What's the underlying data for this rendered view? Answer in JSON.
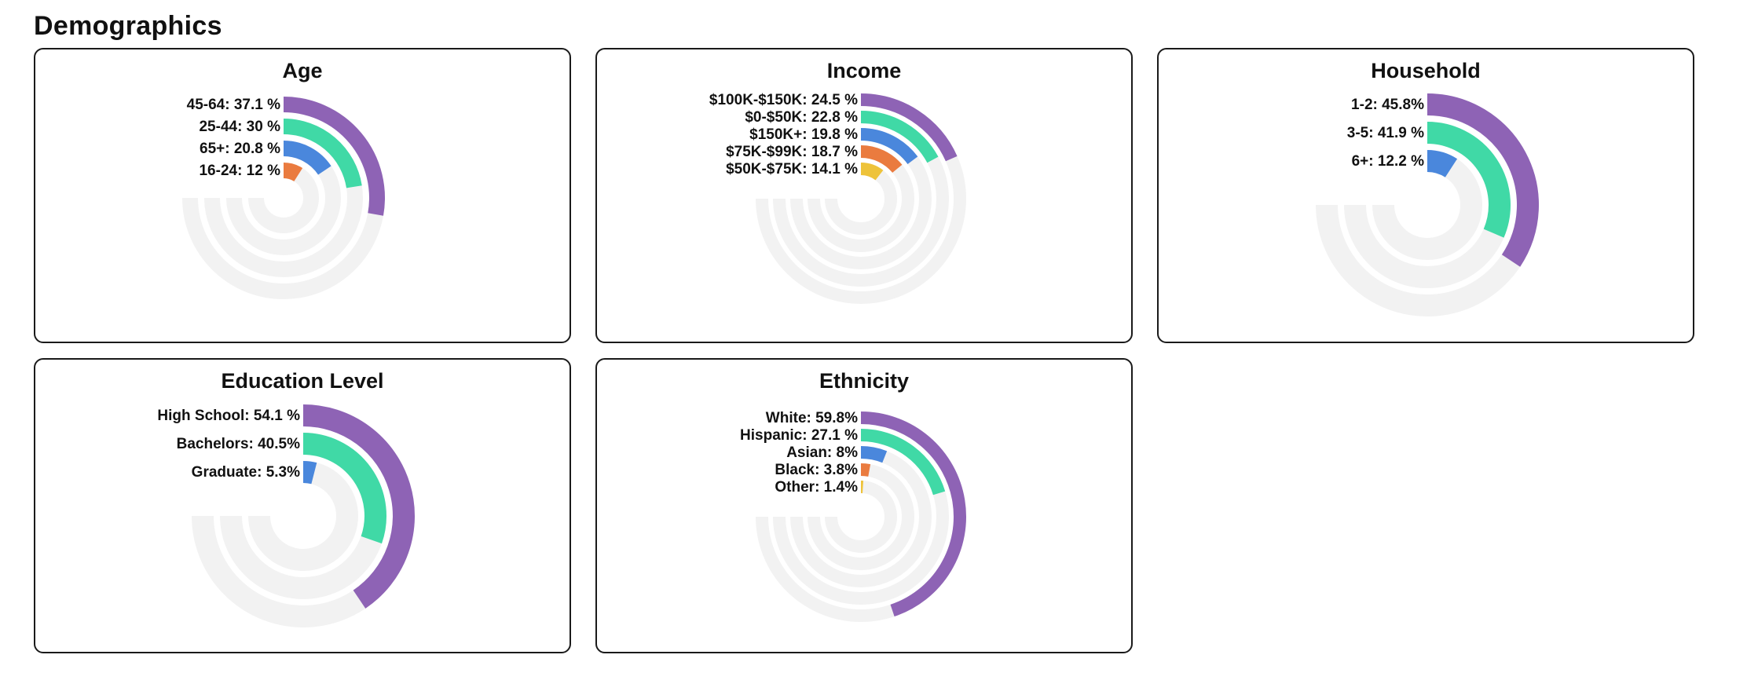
{
  "page": {
    "title": "Demographics"
  },
  "colors": [
    "#8e63b5",
    "#40d9a6",
    "#4a87dc",
    "#ea7b3f",
    "#eec33a"
  ],
  "track_color": "#f2f2f2",
  "chart_data": [
    {
      "type": "radial-bar",
      "title": "Age",
      "categories": [
        "45-64",
        "25-44",
        "65+",
        "16-24"
      ],
      "values": [
        37.1,
        30,
        20.8,
        12
      ],
      "labels": [
        "45-64: 37.1 %",
        "25-44: 30 %",
        "65+: 20.8 %",
        "16-24: 12 %"
      ],
      "max": 100
    },
    {
      "type": "radial-bar",
      "title": "Income",
      "categories": [
        "$100K-$150K",
        "$0-$50K",
        "$150K+",
        "$75K-$99K",
        "$50K-$75K"
      ],
      "values": [
        24.5,
        22.8,
        19.8,
        18.7,
        14.1
      ],
      "labels": [
        "$100K-$150K: 24.5 %",
        "$0-$50K: 22.8 %",
        "$150K+: 19.8 %",
        "$75K-$99K: 18.7 %",
        "$50K-$75K: 14.1 %"
      ],
      "max": 100
    },
    {
      "type": "radial-bar",
      "title": "Household",
      "categories": [
        "1-2",
        "3-5",
        "6+"
      ],
      "values": [
        45.8,
        41.9,
        12.2
      ],
      "labels": [
        "1-2: 45.8%",
        "3-5: 41.9 %",
        "6+: 12.2 %"
      ],
      "max": 100
    },
    {
      "type": "radial-bar",
      "title": "Education Level",
      "categories": [
        "High School",
        "Bachelors",
        "Graduate"
      ],
      "values": [
        54.1,
        40.5,
        5.3
      ],
      "labels": [
        "High School: 54.1 %",
        "Bachelors: 40.5%",
        "Graduate: 5.3%"
      ],
      "max": 100
    },
    {
      "type": "radial-bar",
      "title": "Ethnicity",
      "categories": [
        "White",
        "Hispanic",
        "Asian",
        "Black",
        "Other"
      ],
      "values": [
        59.8,
        27.1,
        8,
        3.8,
        1.4
      ],
      "labels": [
        "White: 59.8%",
        "Hispanic: 27.1 %",
        "Asian: 8%",
        "Black: 3.8%",
        "Other: 1.4%"
      ],
      "max": 100
    }
  ]
}
